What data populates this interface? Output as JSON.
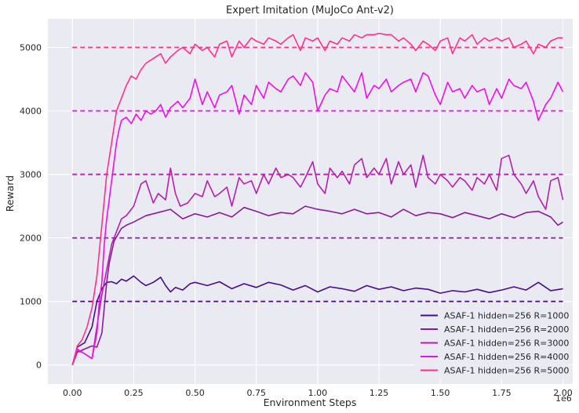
{
  "chart_data": {
    "type": "line",
    "title": "Expert Imitation (MuJoCo Ant-v2)",
    "xlabel": "Environment Steps",
    "ylabel": "Reward",
    "x_offset_label": "1e6",
    "xlim": [
      -0.1,
      2.04
    ],
    "ylim": [
      -300,
      5450
    ],
    "x_ticks": [
      0.0,
      0.25,
      0.5,
      0.75,
      1.0,
      1.25,
      1.5,
      1.75,
      2.0
    ],
    "x_tick_labels": [
      "0.00",
      "0.25",
      "0.50",
      "0.75",
      "1.00",
      "1.25",
      "1.50",
      "1.75",
      "2.00"
    ],
    "y_ticks": [
      0,
      1000,
      2000,
      3000,
      4000,
      5000
    ],
    "y_tick_labels": [
      "0",
      "1000",
      "2000",
      "3000",
      "4000",
      "5000"
    ],
    "grid": true,
    "background": "#eaeaf2",
    "legend_position": "lower-right",
    "expert_levels": [
      {
        "value": 1000,
        "color": "#4a0c8c"
      },
      {
        "value": 2000,
        "color": "#8a1a9e"
      },
      {
        "value": 3000,
        "color": "#b51fb0"
      },
      {
        "value": 4000,
        "color": "#f00ee8"
      },
      {
        "value": 5000,
        "color": "#ff2f8e"
      }
    ],
    "series": [
      {
        "name": "ASAF-1 hidden=256 R=1000",
        "color": "#4a0c8c",
        "x": [
          0,
          0.02,
          0.05,
          0.08,
          0.1,
          0.12,
          0.14,
          0.16,
          0.18,
          0.2,
          0.22,
          0.25,
          0.28,
          0.3,
          0.33,
          0.36,
          0.38,
          0.4,
          0.42,
          0.45,
          0.48,
          0.5,
          0.55,
          0.6,
          0.65,
          0.7,
          0.75,
          0.8,
          0.85,
          0.9,
          0.95,
          1.0,
          1.05,
          1.1,
          1.15,
          1.2,
          1.25,
          1.3,
          1.35,
          1.4,
          1.45,
          1.5,
          1.55,
          1.6,
          1.65,
          1.7,
          1.75,
          1.8,
          1.85,
          1.9,
          1.95,
          2.0
        ],
        "y": [
          0,
          280,
          350,
          600,
          1000,
          1200,
          1300,
          1310,
          1280,
          1350,
          1320,
          1400,
          1300,
          1250,
          1300,
          1380,
          1250,
          1150,
          1220,
          1180,
          1280,
          1300,
          1250,
          1310,
          1200,
          1280,
          1220,
          1300,
          1260,
          1180,
          1250,
          1150,
          1230,
          1200,
          1160,
          1250,
          1190,
          1230,
          1170,
          1210,
          1190,
          1130,
          1170,
          1150,
          1190,
          1140,
          1180,
          1230,
          1180,
          1300,
          1170,
          1200
        ]
      },
      {
        "name": "ASAF-1 hidden=256 R=2000",
        "color": "#8a1a9e",
        "x": [
          0,
          0.02,
          0.05,
          0.08,
          0.1,
          0.12,
          0.14,
          0.15,
          0.17,
          0.2,
          0.22,
          0.25,
          0.3,
          0.35,
          0.4,
          0.45,
          0.5,
          0.55,
          0.6,
          0.65,
          0.7,
          0.75,
          0.8,
          0.85,
          0.9,
          0.95,
          1.0,
          1.05,
          1.1,
          1.15,
          1.2,
          1.25,
          1.3,
          1.35,
          1.4,
          1.45,
          1.5,
          1.55,
          1.6,
          1.65,
          1.7,
          1.75,
          1.8,
          1.85,
          1.9,
          1.95,
          1.98,
          2.0
        ],
        "y": [
          0,
          200,
          250,
          300,
          280,
          500,
          1300,
          1600,
          1950,
          2150,
          2200,
          2250,
          2350,
          2400,
          2450,
          2300,
          2380,
          2330,
          2400,
          2330,
          2480,
          2420,
          2350,
          2400,
          2380,
          2500,
          2450,
          2420,
          2380,
          2450,
          2380,
          2400,
          2330,
          2450,
          2350,
          2400,
          2380,
          2320,
          2400,
          2350,
          2300,
          2380,
          2320,
          2400,
          2420,
          2330,
          2200,
          2250
        ]
      },
      {
        "name": "ASAF-1 hidden=256 R=3000",
        "color": "#b51fb0",
        "x": [
          0,
          0.02,
          0.04,
          0.06,
          0.08,
          0.1,
          0.12,
          0.14,
          0.16,
          0.18,
          0.2,
          0.22,
          0.25,
          0.28,
          0.3,
          0.33,
          0.35,
          0.38,
          0.4,
          0.42,
          0.44,
          0.47,
          0.5,
          0.53,
          0.55,
          0.58,
          0.6,
          0.63,
          0.65,
          0.68,
          0.7,
          0.73,
          0.75,
          0.78,
          0.8,
          0.83,
          0.85,
          0.88,
          0.9,
          0.93,
          0.95,
          0.98,
          1.0,
          1.03,
          1.05,
          1.08,
          1.1,
          1.13,
          1.15,
          1.18,
          1.2,
          1.23,
          1.25,
          1.28,
          1.3,
          1.33,
          1.35,
          1.38,
          1.4,
          1.43,
          1.45,
          1.48,
          1.5,
          1.53,
          1.55,
          1.58,
          1.6,
          1.63,
          1.65,
          1.68,
          1.7,
          1.73,
          1.75,
          1.78,
          1.8,
          1.83,
          1.85,
          1.88,
          1.9,
          1.93,
          1.95,
          1.98,
          2.0
        ],
        "y": [
          0,
          220,
          200,
          150,
          100,
          600,
          1100,
          1500,
          1900,
          2100,
          2300,
          2350,
          2500,
          2850,
          2900,
          2550,
          2700,
          2600,
          3100,
          2700,
          2500,
          2550,
          2700,
          2650,
          2900,
          2650,
          2700,
          2800,
          2500,
          2950,
          2850,
          2900,
          2700,
          3000,
          2850,
          3100,
          2950,
          3000,
          2950,
          2800,
          2950,
          3200,
          2850,
          2700,
          3100,
          2950,
          3050,
          2850,
          3150,
          3250,
          2950,
          3100,
          3000,
          3250,
          2850,
          3200,
          3000,
          3150,
          2800,
          3300,
          2950,
          2850,
          3000,
          2900,
          2800,
          2950,
          2900,
          2750,
          2950,
          2850,
          3000,
          2750,
          3250,
          3300,
          3000,
          2850,
          2700,
          2900,
          2650,
          2450,
          2900,
          2950,
          2600
        ]
      },
      {
        "name": "ASAF-1 hidden=256 R=4000",
        "color": "#f00ee8",
        "x": [
          0,
          0.02,
          0.04,
          0.06,
          0.08,
          0.1,
          0.11,
          0.12,
          0.13,
          0.14,
          0.15,
          0.16,
          0.17,
          0.18,
          0.19,
          0.2,
          0.22,
          0.24,
          0.26,
          0.28,
          0.3,
          0.32,
          0.34,
          0.36,
          0.38,
          0.4,
          0.43,
          0.45,
          0.48,
          0.5,
          0.53,
          0.55,
          0.58,
          0.6,
          0.63,
          0.65,
          0.68,
          0.7,
          0.73,
          0.75,
          0.78,
          0.8,
          0.83,
          0.85,
          0.88,
          0.9,
          0.93,
          0.95,
          0.98,
          1.0,
          1.03,
          1.05,
          1.08,
          1.1,
          1.13,
          1.15,
          1.18,
          1.2,
          1.23,
          1.25,
          1.28,
          1.3,
          1.33,
          1.35,
          1.38,
          1.4,
          1.43,
          1.45,
          1.48,
          1.5,
          1.53,
          1.55,
          1.58,
          1.6,
          1.63,
          1.65,
          1.68,
          1.7,
          1.73,
          1.75,
          1.78,
          1.8,
          1.83,
          1.85,
          1.88,
          1.9,
          1.93,
          1.95,
          1.98,
          2.0
        ],
        "y": [
          0,
          250,
          200,
          150,
          100,
          500,
          1000,
          1300,
          1900,
          2300,
          2600,
          2900,
          3200,
          3500,
          3700,
          3850,
          3900,
          3800,
          3950,
          3850,
          4000,
          3950,
          4000,
          4100,
          3900,
          4050,
          4150,
          4050,
          4200,
          4500,
          4100,
          4300,
          4050,
          4250,
          4300,
          4400,
          3950,
          4250,
          4100,
          4400,
          4200,
          4450,
          4350,
          4300,
          4500,
          4550,
          4400,
          4600,
          4450,
          4000,
          4250,
          4350,
          4300,
          4550,
          4400,
          4300,
          4600,
          4200,
          4400,
          4350,
          4500,
          4300,
          4400,
          4450,
          4500,
          4300,
          4600,
          4550,
          4250,
          4100,
          4450,
          4300,
          4350,
          4200,
          4400,
          4300,
          4350,
          4100,
          4350,
          4200,
          4500,
          4400,
          4350,
          4450,
          4150,
          3850,
          4100,
          4200,
          4450,
          4300
        ]
      },
      {
        "name": "ASAF-1 hidden=256 R=5000",
        "color": "#ff2f8e",
        "x": [
          0,
          0.02,
          0.04,
          0.06,
          0.08,
          0.1,
          0.12,
          0.14,
          0.16,
          0.18,
          0.2,
          0.22,
          0.24,
          0.26,
          0.28,
          0.3,
          0.32,
          0.34,
          0.36,
          0.38,
          0.4,
          0.43,
          0.45,
          0.48,
          0.5,
          0.53,
          0.55,
          0.58,
          0.6,
          0.63,
          0.65,
          0.68,
          0.7,
          0.73,
          0.75,
          0.78,
          0.8,
          0.83,
          0.85,
          0.88,
          0.9,
          0.93,
          0.95,
          0.98,
          1.0,
          1.03,
          1.05,
          1.08,
          1.1,
          1.13,
          1.15,
          1.18,
          1.2,
          1.23,
          1.25,
          1.28,
          1.3,
          1.33,
          1.35,
          1.38,
          1.4,
          1.43,
          1.45,
          1.48,
          1.5,
          1.53,
          1.55,
          1.58,
          1.6,
          1.63,
          1.65,
          1.68,
          1.7,
          1.73,
          1.75,
          1.78,
          1.8,
          1.83,
          1.85,
          1.88,
          1.9,
          1.93,
          1.95,
          1.98,
          2.0
        ],
        "y": [
          0,
          300,
          400,
          600,
          900,
          1400,
          2200,
          3000,
          3500,
          4000,
          4200,
          4400,
          4550,
          4500,
          4650,
          4750,
          4800,
          4850,
          4900,
          4750,
          4850,
          4950,
          5000,
          4900,
          5050,
          4950,
          5000,
          4850,
          5050,
          5100,
          4850,
          5100,
          5000,
          5150,
          5100,
          5050,
          5150,
          5100,
          5050,
          5150,
          5200,
          4950,
          5150,
          5100,
          5150,
          4950,
          5100,
          5050,
          5150,
          5100,
          5200,
          5150,
          5200,
          5200,
          5220,
          5200,
          5200,
          5100,
          5150,
          5050,
          4950,
          5100,
          5050,
          4950,
          5100,
          5150,
          4900,
          5150,
          5100,
          5200,
          5050,
          5150,
          5100,
          5150,
          5100,
          5150,
          5000,
          5050,
          5100,
          4900,
          5050,
          5000,
          5100,
          5150,
          5150
        ]
      }
    ]
  }
}
